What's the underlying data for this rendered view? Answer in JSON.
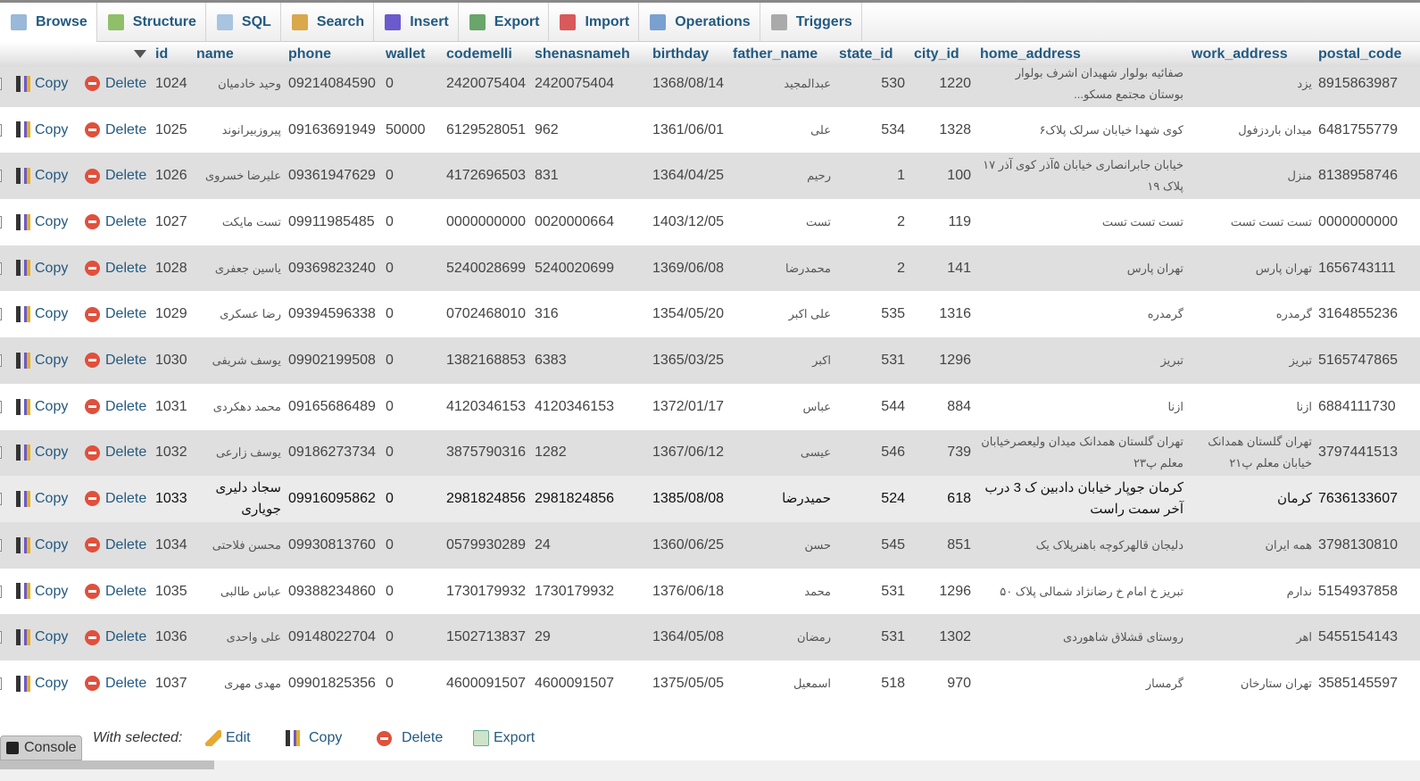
{
  "tabs": [
    {
      "label": "Browse",
      "icon": "table-icon",
      "active": true
    },
    {
      "label": "Structure",
      "icon": "structure-icon"
    },
    {
      "label": "SQL",
      "icon": "sql-icon"
    },
    {
      "label": "Search",
      "icon": "search-icon"
    },
    {
      "label": "Insert",
      "icon": "insert-icon"
    },
    {
      "label": "Export",
      "icon": "export-icon"
    },
    {
      "label": "Import",
      "icon": "import-icon"
    },
    {
      "label": "Operations",
      "icon": "wrench-icon"
    },
    {
      "label": "Triggers",
      "icon": "triggers-icon"
    }
  ],
  "columns": [
    "id",
    "name",
    "phone",
    "wallet",
    "codemelli",
    "shenasnameh",
    "birthday",
    "father_name",
    "state_id",
    "city_id",
    "home_address",
    "work_address",
    "postal_code"
  ],
  "row_actions": {
    "copy": "Copy",
    "delete": "Delete"
  },
  "rows": [
    [
      "1024",
      "وحید خادمیان",
      "09214084590",
      "0",
      "2420075404",
      "2420075404",
      "1368/08/14",
      "عبدالمجید",
      "530",
      "1220",
      "صفائیه بولوار شهیدان اشرف بولوار بوستان مجتمع مسکو...",
      "یزد",
      "8915863987"
    ],
    [
      "1025",
      "پیروزبیرانوند",
      "09163691949",
      "50000",
      "6129528051",
      "962",
      "1361/06/01",
      "علی",
      "534",
      "1328",
      "کوی شهدا خیابان سرلک پلاک۶",
      "میدان باردزفول",
      "6481755779"
    ],
    [
      "1026",
      "علیرضا خسروی",
      "09361947629",
      "0",
      "4172696503",
      "831",
      "1364/04/25",
      "رحیم",
      "1",
      "100",
      "خیابان جابرانصاری خیابان ۵آذر کوی آذر ۱۷ پلاک ۱۹",
      "منزل",
      "8138958746"
    ],
    [
      "1027",
      "تست مایکت",
      "09911985485",
      "0",
      "0000000000",
      "0020000664",
      "1403/12/05",
      "تست",
      "2",
      "119",
      "تست تست تست",
      "تست تست تست",
      "0000000000"
    ],
    [
      "1028",
      "یاسین جعفری",
      "09369823240",
      "0",
      "5240028699",
      "5240020699",
      "1369/06/08",
      "محمدرضا",
      "2",
      "141",
      "تهران پارس",
      "تهران پارس",
      "1656743111"
    ],
    [
      "1029",
      "رضا عسکری",
      "09394596338",
      "0",
      "0702468010",
      "316",
      "1354/05/20",
      "علی اکبر",
      "535",
      "1316",
      "گرمدره",
      "گرمدره",
      "3164855236"
    ],
    [
      "1030",
      "یوسف شریفی",
      "09902199508",
      "0",
      "1382168853",
      "6383",
      "1365/03/25",
      "اکبر",
      "531",
      "1296",
      "تبریز",
      "تبریز",
      "5165747865"
    ],
    [
      "1031",
      "محمد دهکردی",
      "09165686489",
      "0",
      "4120346153",
      "4120346153",
      "1372/01/17",
      "عباس",
      "544",
      "884",
      "ازنا",
      "ازنا",
      "6884111730"
    ],
    [
      "1032",
      "یوسف زارعی",
      "09186273734",
      "0",
      "3875790316",
      "1282",
      "1367/06/12",
      "عیسی",
      "546",
      "739",
      "تهران گلستان همدانک میدان ولیعصرخیابان معلم پ۲۳",
      "تهران گلستان همدانک خیابان معلم پ۲۱",
      "3797441513"
    ],
    [
      "1033",
      "سجاد دلیری جویاری",
      "09916095862",
      "0",
      "2981824856",
      "2981824856",
      "1385/08/08",
      "حمیدرضا",
      "524",
      "618",
      "کرمان جوپار خیابان دادبین ک 3 درب آخر سمت راست",
      "کرمان",
      "7636133607"
    ],
    [
      "1034",
      "محسن فلاحتی",
      "09930813760",
      "0",
      "0579930289",
      "24",
      "1360/06/25",
      "حسن",
      "545",
      "851",
      "دلیجان قالهرکوچه باهنرپلاک یک",
      "همه ایران",
      "3798130810"
    ],
    [
      "1035",
      "عباس طالبی",
      "09388234860",
      "0",
      "1730179932",
      "1730179932",
      "1376/06/18",
      "محمد",
      "531",
      "1296",
      "تبریز خ امام خ رضانژاد شمالی پلاک ۵۰",
      "ندارم",
      "5154937858"
    ],
    [
      "1036",
      "علی واحدی",
      "09148022704",
      "0",
      "1502713837",
      "29",
      "1364/05/08",
      "رمضان",
      "531",
      "1302",
      "روستای قشلاق شاهوردی",
      "اهر",
      "5455154143"
    ],
    [
      "1037",
      "مهدی مهری",
      "09901825356",
      "0",
      "4600091507",
      "4600091507",
      "1375/05/05",
      "اسمعیل",
      "518",
      "970",
      "گرمسار",
      "تهران ستارخان",
      "3585145597"
    ]
  ],
  "hovered_row_id": "1033",
  "bottom": {
    "with_selected": "With selected:",
    "edit": "Edit",
    "copy": "Copy",
    "delete": "Delete",
    "export": "Export",
    "console": "Console"
  },
  "colors": {
    "link": "#235a81",
    "odd_row": "#dfdfdf",
    "delete": "#e0503c"
  }
}
